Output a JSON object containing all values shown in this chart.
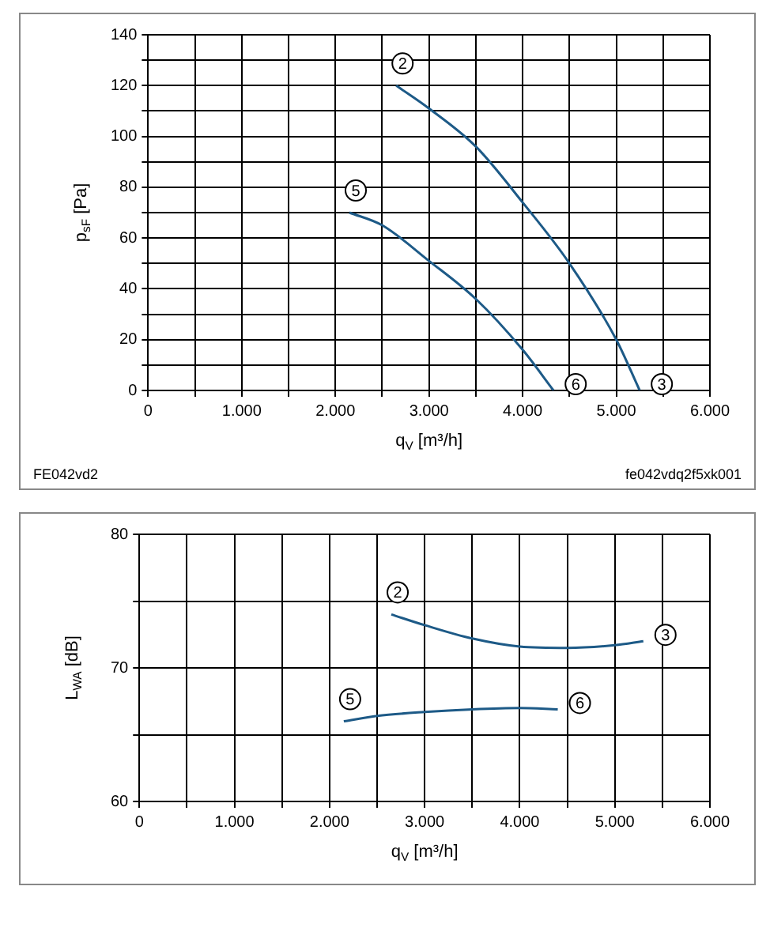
{
  "chart_data": [
    {
      "type": "line",
      "xlabel": "q$_{V}$ [m³/h]",
      "ylabel": "p$_{sF}$ [Pa]",
      "xlim": [
        0,
        6000
      ],
      "ylim": [
        0,
        140
      ],
      "xticks": [
        0,
        {
          "value": 500,
          "label": null
        },
        {
          "value": 1000,
          "label": "1.000"
        },
        {
          "value": 1500,
          "label": null
        },
        {
          "value": 2000,
          "label": "2.000"
        },
        {
          "value": 2500,
          "label": null
        },
        {
          "value": 3000,
          "label": "3.000"
        },
        {
          "value": 3500,
          "label": null
        },
        {
          "value": 4000,
          "label": "4.000"
        },
        {
          "value": 4500,
          "label": null
        },
        {
          "value": 5000,
          "label": "5.000"
        },
        {
          "value": 5500,
          "label": null
        },
        {
          "value": 6000,
          "label": "6.000"
        }
      ],
      "yticks": [
        0,
        {
          "value": 10,
          "label": null
        },
        20,
        {
          "value": 30,
          "label": null
        },
        40,
        {
          "value": 50,
          "label": null
        },
        60,
        {
          "value": 70,
          "label": null
        },
        80,
        {
          "value": 90,
          "label": null
        },
        100,
        {
          "value": 110,
          "label": null
        },
        120,
        {
          "value": 130,
          "label": null
        },
        140
      ],
      "grid": true,
      "marker": "none",
      "series": [
        {
          "color": "#1d5a87",
          "x": [
            2650,
            3000,
            3500,
            4000,
            4500,
            5000,
            5250
          ],
          "values": [
            120,
            111,
            96,
            74,
            50,
            20,
            0
          ]
        },
        {
          "color": "#1d5a87",
          "x": [
            2150,
            2500,
            3000,
            3500,
            4000,
            4330
          ],
          "values": [
            70,
            65,
            51,
            36,
            16,
            0
          ]
        }
      ],
      "annotations": [
        {
          "text": "2",
          "x": 2650,
          "y": 120
        },
        {
          "text": "5",
          "x": 2150,
          "y": 70
        },
        {
          "text": "6",
          "x": 4330,
          "y": 0
        },
        {
          "text": "3",
          "x": 5250,
          "y": 0
        },
        "FE042vd2",
        "fe042vdq2f5xk001"
      ]
    },
    {
      "type": "line",
      "xlabel": "q$_{V}$ [m³/h]",
      "ylabel": "L$_{WA}$ [dB]",
      "xlim": [
        0,
        6000
      ],
      "ylim": [
        60,
        80
      ],
      "xticks": [
        0,
        {
          "value": 500,
          "label": null
        },
        {
          "value": 1000,
          "label": "1.000"
        },
        {
          "value": 1500,
          "label": null
        },
        {
          "value": 2000,
          "label": "2.000"
        },
        {
          "value": 2500,
          "label": null
        },
        {
          "value": 3000,
          "label": "3.000"
        },
        {
          "value": 3500,
          "label": null
        },
        {
          "value": 4000,
          "label": "4.000"
        },
        {
          "value": 4500,
          "label": null
        },
        {
          "value": 5000,
          "label": "5.000"
        },
        {
          "value": 5500,
          "label": null
        },
        {
          "value": 6000,
          "label": "6.000"
        }
      ],
      "yticks": [
        60,
        {
          "value": 65,
          "label": null
        },
        70,
        {
          "value": 75,
          "label": null
        },
        80
      ],
      "grid": true,
      "marker": "none",
      "series": [
        {
          "color": "#1d5a87",
          "x": [
            2650,
            3000,
            3500,
            4000,
            4500,
            5000,
            5300
          ],
          "values": [
            74,
            73.2,
            72.2,
            71.6,
            71.5,
            71.7,
            72
          ]
        },
        {
          "color": "#1d5a87",
          "x": [
            2150,
            2500,
            3000,
            3500,
            4000,
            4400
          ],
          "values": [
            66,
            66.4,
            66.7,
            66.9,
            67,
            66.9
          ]
        }
      ],
      "annotations": [
        {
          "text": "2",
          "x": 2650,
          "y": 74
        },
        {
          "text": "3",
          "x": 5300,
          "y": 72
        },
        {
          "text": "5",
          "x": 2150,
          "y": 66
        },
        {
          "text": "6",
          "x": 4400,
          "y": 66.9
        }
      ]
    }
  ]
}
